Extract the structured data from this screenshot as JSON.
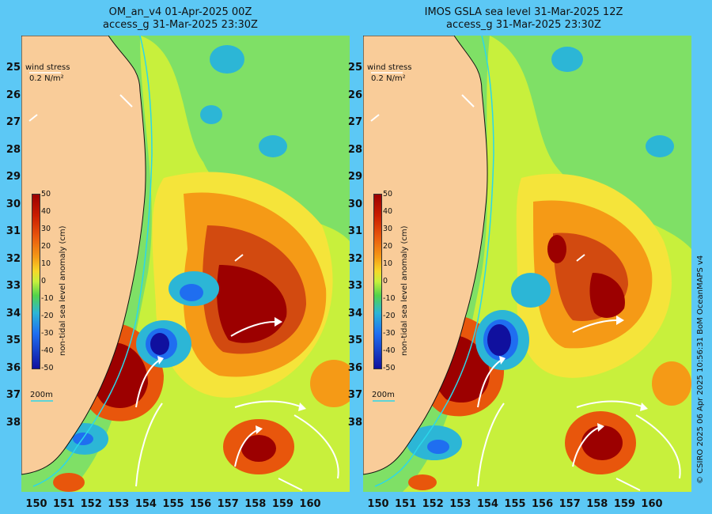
{
  "panels": [
    {
      "title_line1": "OM_an_v4  01-Apr-2025 00Z",
      "title_line2": "access_g 31-Mar-2025 23:30Z"
    },
    {
      "title_line1": "IMOS GSLA sea level  31-Mar-2025 12Z",
      "title_line2": "access_g 31-Mar-2025 23:30Z"
    }
  ],
  "y_ticks": [
    "25",
    "26",
    "27",
    "28",
    "29",
    "30",
    "31",
    "32",
    "33",
    "34",
    "35",
    "36",
    "37",
    "38"
  ],
  "x_ticks": [
    "150",
    "151",
    "152",
    "153",
    "154",
    "155",
    "156",
    "157",
    "158",
    "159",
    "160"
  ],
  "wind_stress": {
    "label": "wind stress",
    "scale": "0.2 N/m²"
  },
  "depth_contour_label": "200m",
  "colorbar": {
    "label": "non-tidal sea level anomaly (cm)",
    "ticks": [
      "50",
      "40",
      "30",
      "20",
      "10",
      "0",
      "-10",
      "-20",
      "-30",
      "-40",
      "-50"
    ]
  },
  "credit": "© CSIRO 2025   06 Apr 2025 10:56:31 BoM OceanMAPS v4",
  "colors": {
    "land": "#f9cc99",
    "ocean_bg": "#5cc8f5",
    "isobath": "#2bd7ea"
  }
}
